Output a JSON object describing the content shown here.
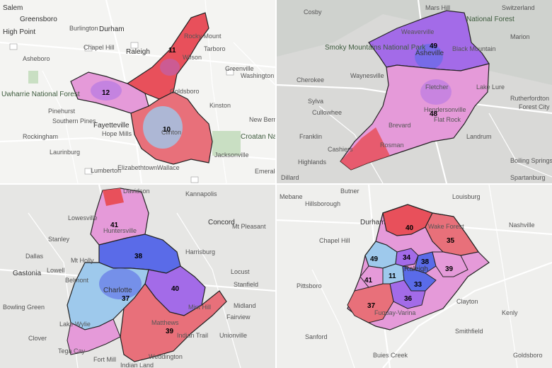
{
  "colors": {
    "red": "#e8505b",
    "pink": "#e59ad9",
    "violet": "#a36be8",
    "blue": "#5a6be8",
    "light_blue": "#9ec9ec"
  },
  "panels": [
    {
      "places": [
        "Salem",
        "Greensboro",
        "High Point",
        "Burlington",
        "Durham",
        "Chapel Hill",
        "Raleigh",
        "Rocky Mount",
        "Tarboro",
        "Wilson",
        "Asheboro",
        "Uwharrie National Forest",
        "Goldsboro",
        "Pinehurst",
        "Southern Pines",
        "Fayetteville",
        "Hope Mills",
        "Clinton",
        "Kinston",
        "Greenville",
        "Washington",
        "New Bern",
        "Rockingham",
        "Laurinburg",
        "Lumberton",
        "Elizabethtown",
        "Wallace",
        "Jacksonville",
        "Croatan National Forest",
        "Emerald"
      ],
      "districts": [
        "11",
        "12",
        "10"
      ]
    },
    {
      "places": [
        "Mars Hill",
        "Switzerland",
        "Cosby",
        "Smoky Mountains National Park",
        "Weaverville",
        "Marion",
        "Asheville",
        "Black Mountain",
        "Waynesville",
        "Cherokee",
        "Fletcher",
        "Lake Lure",
        "Sylva",
        "Hendersonville",
        "Rutherfordton",
        "Forest City",
        "Cullowhee",
        "Brevard",
        "Flat Rock",
        "Franklin",
        "Cashiers",
        "Rosman",
        "Landrum",
        "Highlands",
        "Dillard",
        "Boiling Springs",
        "Spartanburg",
        "National Forest"
      ],
      "districts": [
        "49",
        "48"
      ]
    },
    {
      "places": [
        "Davidson",
        "Kannapolis",
        "Lowesville",
        "Huntersville",
        "Concord",
        "Mt Pleasant",
        "Stanley",
        "Dallas",
        "Mt Holly",
        "Harrisburg",
        "Gastonia",
        "Lowell",
        "Belmont",
        "Locust",
        "Stanfield",
        "Charlotte",
        "Midland",
        "Mint Hill",
        "Bowling Green",
        "Fairview",
        "Matthews",
        "Lake Wylie",
        "Indian Trail",
        "Unionville",
        "Clover",
        "Tega Cay",
        "Fort Mill",
        "Weddington",
        "Indian Land"
      ],
      "districts": [
        "41",
        "38",
        "40",
        "37",
        "39"
      ]
    },
    {
      "places": [
        "Butner",
        "Mebane",
        "Hillsborough",
        "Louisburg",
        "Durham",
        "Wake Forest",
        "Nashville",
        "Chapel Hill",
        "Raleigh",
        "Pittsboro",
        "Clayton",
        "Kenly",
        "Fuquay-Varina",
        "Sanford",
        "Smithfield",
        "Buies Creek",
        "Goldsboro"
      ],
      "districts": [
        "40",
        "35",
        "49",
        "34",
        "38",
        "41",
        "11",
        "39",
        "33",
        "36",
        "37"
      ]
    }
  ]
}
